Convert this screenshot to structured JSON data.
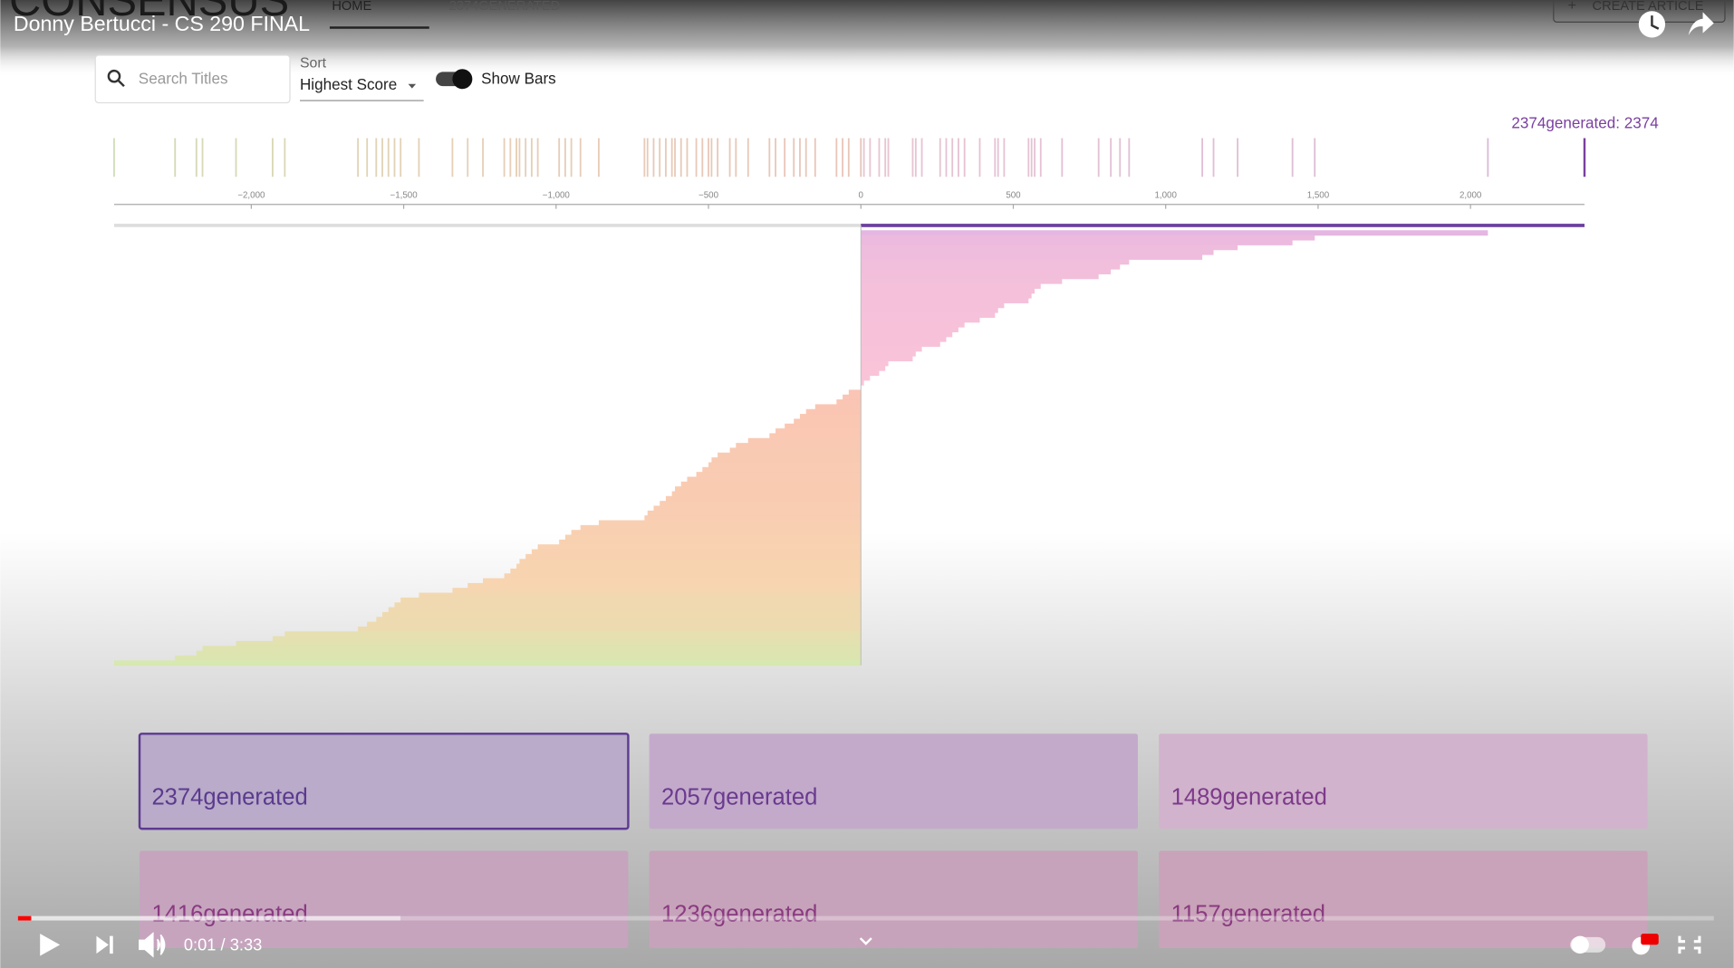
{
  "video": {
    "title": "Donny Bertucci - CS 290 FINAL",
    "time": "0:01 / 3:33"
  },
  "app": {
    "brand": "CONSENSUS",
    "nav": [
      "HOME",
      "2374GENERATED"
    ],
    "create_button": "CREATE ARTICLE",
    "search_placeholder": "Search Titles",
    "sort_label": "Sort",
    "sort_value": "Highest Score",
    "toggle_label": "Show Bars",
    "hover_label": "2374generated: 2374",
    "cards": [
      "2374generated",
      "2057generated",
      "1489generated",
      "1416generated",
      "1236generated",
      "1157generated"
    ]
  },
  "chart_data": {
    "type": "bar",
    "xlim": [
      -2450,
      2374
    ],
    "xticks": [
      {
        "value": -2000,
        "label": "−2,000"
      },
      {
        "value": -1500,
        "label": "−1,500"
      },
      {
        "value": -1000,
        "label": "−1,000"
      },
      {
        "value": -500,
        "label": "−500"
      },
      0,
      500,
      {
        "value": 1000,
        "label": "1,000"
      },
      {
        "value": 1500,
        "label": "1,500"
      },
      {
        "value": 2000,
        "label": "2,000"
      }
    ],
    "scores": [
      2374,
      2057,
      1489,
      1416,
      1236,
      1157,
      1120,
      880,
      850,
      820,
      780,
      660,
      590,
      570,
      560,
      550,
      470,
      450,
      440,
      390,
      340,
      320,
      300,
      280,
      260,
      200,
      180,
      170,
      90,
      80,
      60,
      30,
      10,
      0,
      -40,
      -60,
      -80,
      -150,
      -180,
      -200,
      -220,
      -250,
      -280,
      -300,
      -370,
      -410,
      -430,
      -470,
      -490,
      -500,
      -520,
      -540,
      -570,
      -590,
      -610,
      -620,
      -640,
      -660,
      -680,
      -700,
      -710,
      -860,
      -920,
      -950,
      -970,
      -990,
      -1060,
      -1080,
      -1100,
      -1120,
      -1130,
      -1150,
      -1170,
      -1240,
      -1290,
      -1340,
      -1450,
      -1510,
      -1530,
      -1550,
      -1570,
      -1590,
      -1620,
      -1650,
      -1890,
      -1930,
      -2050,
      -2160,
      -2180,
      -2250,
      -2450
    ]
  }
}
